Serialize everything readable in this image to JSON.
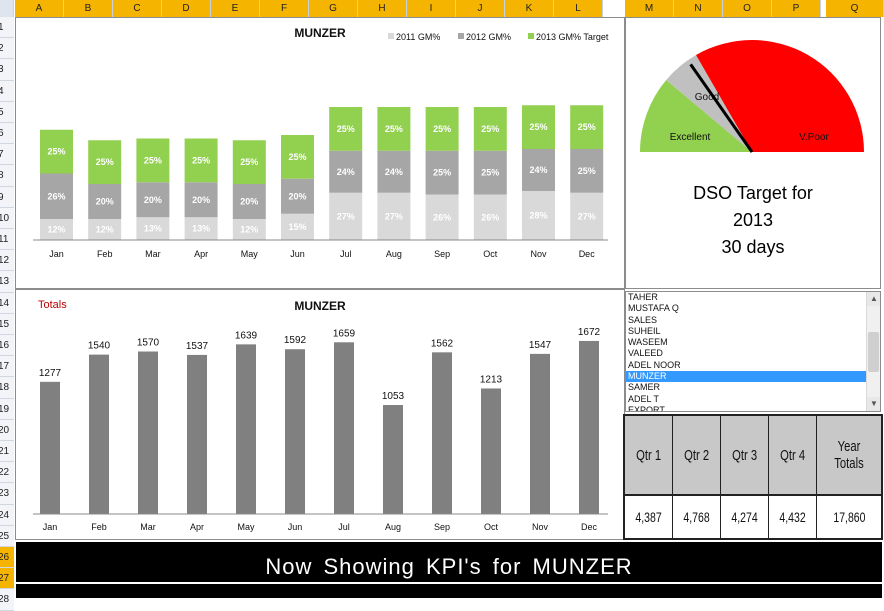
{
  "columns": [
    "A",
    "B",
    "C",
    "D",
    "E",
    "F",
    "G",
    "H",
    "I",
    "J",
    "K",
    "L",
    "M",
    "N",
    "O",
    "P",
    "Q"
  ],
  "rows": [
    "1",
    "2",
    "3",
    "4",
    "5",
    "6",
    "7",
    "8",
    "9",
    "10",
    "11",
    "12",
    "13",
    "14",
    "15",
    "16",
    "17",
    "18",
    "19",
    "20",
    "21",
    "22",
    "23",
    "24",
    "25",
    "26",
    "27",
    "28"
  ],
  "selected_rows": [
    "26",
    "27"
  ],
  "gm_chart": {
    "title": "MUNZER",
    "legend": [
      "2011 GM%",
      "2012 GM%",
      "2013 GM% Target"
    ],
    "colors": {
      "2011": "#d9d9d9",
      "2012": "#a6a6a6",
      "2013": "#92d050"
    }
  },
  "totals_chart": {
    "corner_label": "Totals",
    "title": "MUNZER",
    "bar_color": "#808080"
  },
  "chart_data": [
    {
      "type": "bar",
      "stacked": true,
      "title": "MUNZER",
      "categories": [
        "Jan",
        "Feb",
        "Mar",
        "Apr",
        "May",
        "Jun",
        "Jul",
        "Aug",
        "Sep",
        "Oct",
        "Nov",
        "Dec"
      ],
      "series": [
        {
          "name": "2011 GM%",
          "values": [
            12,
            12,
            13,
            13,
            12,
            15,
            27,
            27,
            26,
            26,
            28,
            27
          ],
          "labels": [
            "12%",
            "12%",
            "13%",
            "13%",
            "12%",
            "15%",
            "27%",
            "27%",
            "26%",
            "26%",
            "28%",
            "27%"
          ]
        },
        {
          "name": "2012 GM%",
          "values": [
            26,
            20,
            20,
            20,
            20,
            20,
            24,
            24,
            25,
            25,
            24,
            25
          ],
          "labels": [
            "26%",
            "20%",
            "20%",
            "20%",
            "20%",
            "20%",
            "24%",
            "24%",
            "25%",
            "25%",
            "24%",
            "25%"
          ]
        },
        {
          "name": "2013 GM% Target",
          "values": [
            25,
            25,
            25,
            25,
            25,
            25,
            25,
            25,
            25,
            25,
            25,
            25
          ],
          "labels": [
            "25%",
            "25%",
            "25%",
            "25%",
            "25%",
            "25%",
            "25%",
            "25%",
            "25%",
            "25%",
            "25%",
            "25%"
          ]
        }
      ],
      "legend": "top-right",
      "grid": false
    },
    {
      "type": "bar",
      "title": "MUNZER",
      "categories": [
        "Jan",
        "Feb",
        "Mar",
        "Apr",
        "May",
        "Jun",
        "Jul",
        "Aug",
        "Sep",
        "Oct",
        "Nov",
        "Dec"
      ],
      "values": [
        1277,
        1540,
        1570,
        1537,
        1639,
        1592,
        1659,
        1053,
        1562,
        1213,
        1547,
        1672
      ],
      "ylim": [
        0,
        1800
      ],
      "grid": false
    },
    {
      "type": "pie",
      "kind": "gauge",
      "categories": [
        "Excellent",
        "Good",
        "V.Poor"
      ],
      "values": [
        40,
        20,
        120
      ],
      "colors": [
        "#92d050",
        "#c0c0c0",
        "#ff0000"
      ],
      "needle_value": 55
    }
  ],
  "dso": {
    "line1": "DSO Target for",
    "line2": "2013",
    "line3": "30  days"
  },
  "listbox": {
    "items": [
      "TAHER",
      "MUSTAFA Q",
      "SALES",
      "SUHEIL",
      "WASEEM",
      "VALEED",
      "ADEL NOOR",
      "MUNZER",
      "SAMER",
      "ADEL T",
      "EXPORT"
    ],
    "selected": "MUNZER"
  },
  "quarters": {
    "headers": [
      "Qtr 1",
      "Qtr 2",
      "Qtr 3",
      "Qtr 4",
      "Year Totals"
    ],
    "values": [
      "4,387",
      "4,768",
      "4,274",
      "4,432",
      "17,860"
    ]
  },
  "banner": {
    "text": "Now  Showing  KPI's  for   MUNZER"
  }
}
